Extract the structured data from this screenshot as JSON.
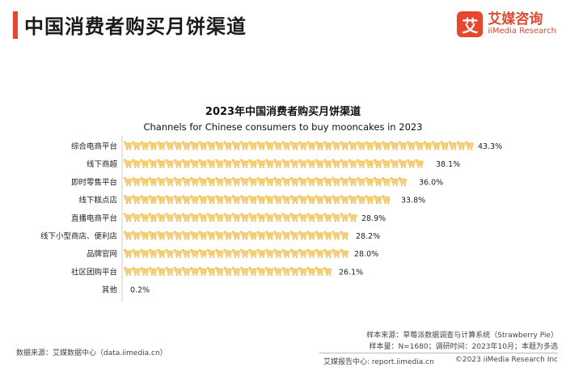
{
  "header": {
    "title": "中国消费者购买月饼渠道",
    "logo_mark": "艾",
    "logo_cn": "艾媒咨询",
    "logo_en": "iiMedia Research"
  },
  "colors": {
    "accent": "#e8462d",
    "bar": "#f1b63a",
    "bar_fill_light": "#fbe3a6"
  },
  "icons": {
    "bar_unit": "shopping-cart-icon"
  },
  "chart_data": {
    "type": "bar",
    "orientation": "horizontal",
    "title": "2023年中国消费者购买月饼渠道",
    "subtitle": "Channels for Chinese consumers to buy mooncakes in 2023",
    "categories": [
      "综合电商平台",
      "线下商超",
      "即时零售平台",
      "线下糕点店",
      "直播电商平台",
      "线下小型商店、便利店",
      "品牌官网",
      "社区团购平台",
      "其他"
    ],
    "values": [
      43.3,
      38.1,
      36.0,
      33.8,
      28.9,
      28.2,
      28.0,
      26.1,
      0.2
    ],
    "value_labels": [
      "43.3%",
      "38.1%",
      "36.0%",
      "33.8%",
      "28.9%",
      "28.2%",
      "28.0%",
      "26.1%",
      "0.2%"
    ],
    "unit": "%",
    "grid": false,
    "legend": "none"
  },
  "notes": {
    "sample_source": "样本来源：草莓派数据调查与计算系统（Strawberry Pie）",
    "sample_info": "样本量：N=1680；调研时间：2023年10月；本题为多选"
  },
  "footer": {
    "data_source": "数据来源：艾媒数据中心（data.iimedia.cn）",
    "report_site": "艾媒报告中心: report.iimedia.cn",
    "copyright": "©2023  iiMedia Research  Inc"
  }
}
